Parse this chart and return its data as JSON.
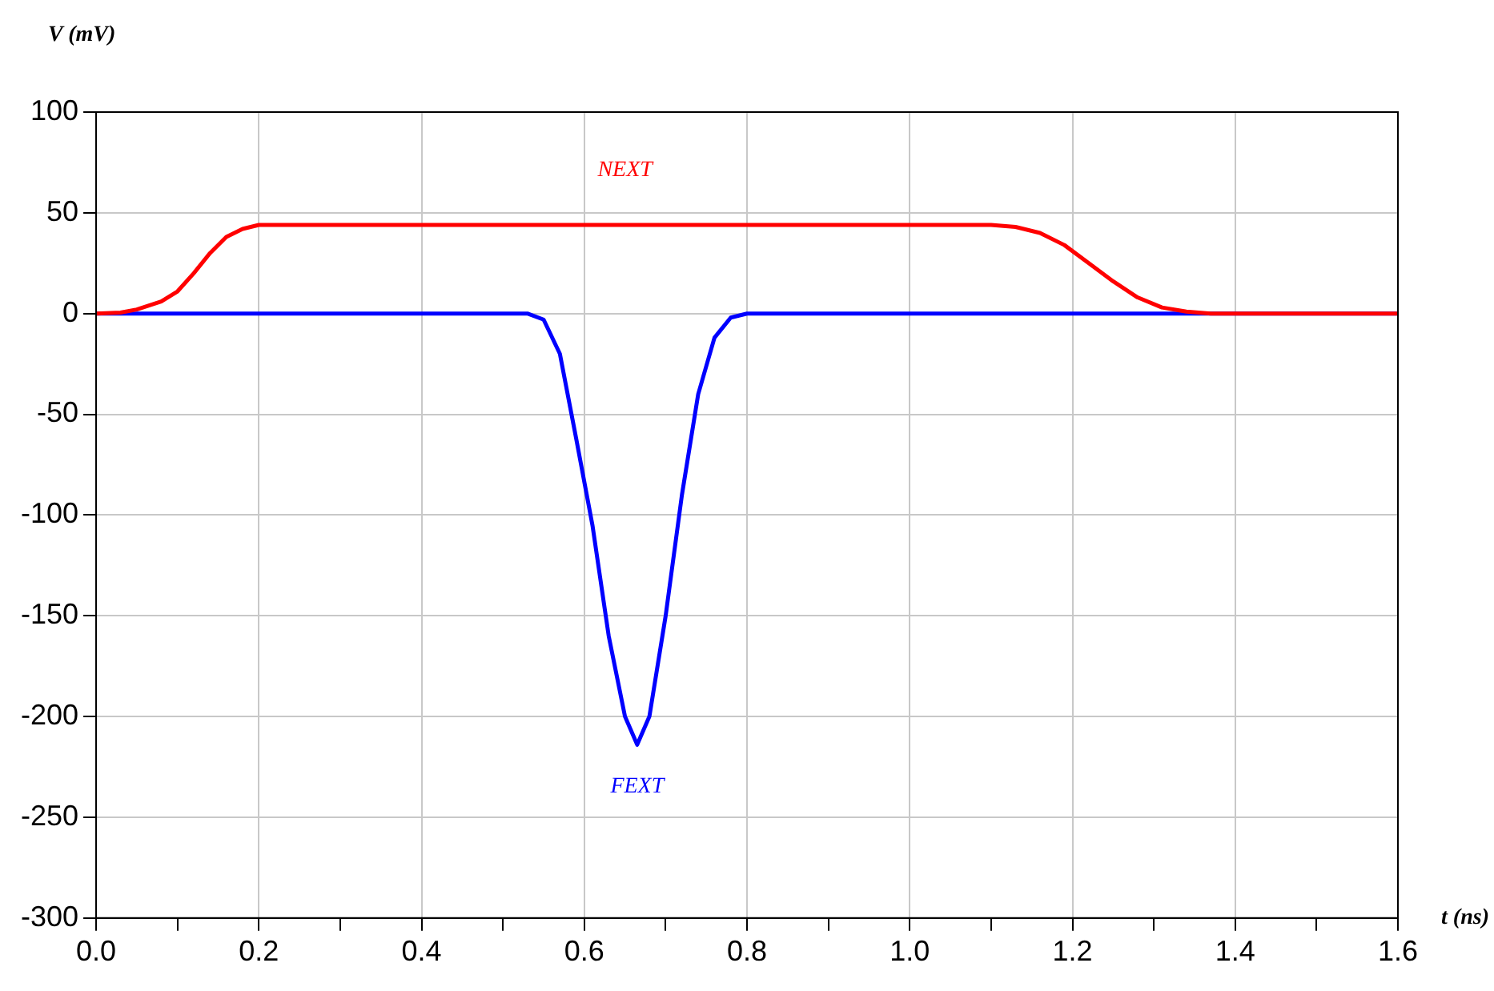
{
  "chart_data": {
    "type": "line",
    "xlabel": "t (ns)",
    "ylabel": "V (mV)",
    "xlim": [
      0,
      1.6
    ],
    "ylim": [
      -300,
      100
    ],
    "xticks": [
      {
        "value": 0,
        "label": "0.0"
      },
      {
        "value": 0.1,
        "label": null
      },
      {
        "value": 0.2,
        "label": "0.2"
      },
      {
        "value": 0.3,
        "label": null
      },
      {
        "value": 0.4,
        "label": "0.4"
      },
      {
        "value": 0.5,
        "label": null
      },
      {
        "value": 0.6,
        "label": "0.6"
      },
      {
        "value": 0.7,
        "label": null
      },
      {
        "value": 0.8,
        "label": "0.8"
      },
      {
        "value": 0.9,
        "label": null
      },
      {
        "value": 1,
        "label": "1.0"
      },
      {
        "value": 1.1,
        "label": null
      },
      {
        "value": 1.2,
        "label": "1.2"
      },
      {
        "value": 1.3,
        "label": null
      },
      {
        "value": 1.4,
        "label": "1.4"
      },
      {
        "value": 1.5,
        "label": null
      },
      {
        "value": 1.6,
        "label": "1.6"
      }
    ],
    "yticks": [
      -300,
      -250,
      -200,
      -150,
      -100,
      -50,
      0,
      50,
      100
    ],
    "grid": true,
    "marker": "none",
    "line_style": "solid",
    "series": [
      {
        "name": "NEXT",
        "color": "#ff0000",
        "x": [
          0,
          0.03,
          0.05,
          0.08,
          0.1,
          0.12,
          0.14,
          0.16,
          0.18,
          0.2,
          1.1,
          1.13,
          1.16,
          1.19,
          1.22,
          1.25,
          1.28,
          1.31,
          1.34,
          1.37,
          1.6
        ],
        "values": [
          0,
          0.5,
          2,
          6,
          11,
          20,
          30,
          38,
          42,
          44,
          44,
          43,
          40,
          34,
          25,
          16,
          8,
          3,
          1,
          0,
          0
        ]
      },
      {
        "name": "FEXT",
        "color": "#0000ff",
        "x": [
          0,
          0.53,
          0.55,
          0.57,
          0.59,
          0.61,
          0.63,
          0.65,
          0.665,
          0.68,
          0.7,
          0.72,
          0.74,
          0.76,
          0.78,
          0.8,
          1.6
        ],
        "values": [
          0,
          0,
          -3,
          -20,
          -62,
          -105,
          -160,
          -200,
          -214,
          -200,
          -150,
          -90,
          -40,
          -12,
          -2,
          0,
          0
        ]
      }
    ]
  }
}
